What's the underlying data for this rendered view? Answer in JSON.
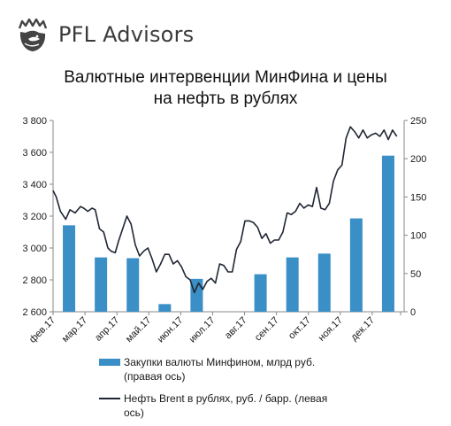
{
  "brand": {
    "name": "PFL Advisors"
  },
  "chart_data": {
    "type": "bar+line",
    "title": [
      "Валютные  интервенции МинФина  и цены",
      "на нефть в рублях"
    ],
    "x_ticks": [
      "фев.17",
      "мар.17",
      "апр.17",
      "май.17",
      "июн.17",
      "июл.17",
      "авг.17",
      "сен.17",
      "окт.17",
      "ноя.17",
      "дек.17"
    ],
    "left_axis": {
      "min": 2600,
      "max": 3800,
      "step": 200,
      "tick_labels": [
        "2 600",
        "2 800",
        "3 000",
        "3 200",
        "3 400",
        "3 600",
        "3 800"
      ]
    },
    "right_axis": {
      "min": 0,
      "max": 250,
      "step": 50,
      "tick_labels": [
        "0",
        "50",
        "100",
        "150",
        "200",
        "250"
      ]
    },
    "series": [
      {
        "name": "Закупки валюты Минфином, млрд руб. (правая ось)",
        "kind": "bar",
        "axis": "right",
        "color": "#3a8fc7",
        "categories": [
          "фев.17",
          "мар.17",
          "апр.17",
          "май.17",
          "июн.17",
          "июл.17",
          "авг.17",
          "сен.17",
          "окт.17",
          "ноя.17",
          "дек.17"
        ],
        "values": [
          113,
          71,
          70,
          10,
          43,
          0,
          49,
          71,
          76,
          122,
          204
        ]
      },
      {
        "name": "Нефть Brent в рублях, руб. / барр. (левая ось)",
        "kind": "line",
        "axis": "left",
        "color": "#1f2633",
        "x": [
          "2017-02-01",
          "2017-02-04",
          "2017-02-08",
          "2017-02-13",
          "2017-02-17",
          "2017-02-22",
          "2017-02-27",
          "2017-03-02",
          "2017-03-06",
          "2017-03-10",
          "2017-03-13",
          "2017-03-17",
          "2017-03-21",
          "2017-03-25",
          "2017-03-28",
          "2017-04-01",
          "2017-04-04",
          "2017-04-08",
          "2017-04-12",
          "2017-04-16",
          "2017-04-20",
          "2017-04-24",
          "2017-04-28",
          "2017-05-02",
          "2017-05-06",
          "2017-05-10",
          "2017-05-14",
          "2017-05-18",
          "2017-05-22",
          "2017-05-26",
          "2017-05-30",
          "2017-06-03",
          "2017-06-07",
          "2017-06-11",
          "2017-06-15",
          "2017-06-19",
          "2017-06-23",
          "2017-06-27",
          "2017-07-01",
          "2017-07-05",
          "2017-07-09",
          "2017-07-13",
          "2017-07-17",
          "2017-07-21",
          "2017-07-25",
          "2017-07-29",
          "2017-08-02",
          "2017-08-06",
          "2017-08-10",
          "2017-08-14",
          "2017-08-18",
          "2017-08-22",
          "2017-08-26",
          "2017-08-30",
          "2017-09-03",
          "2017-09-07",
          "2017-09-11",
          "2017-09-15",
          "2017-09-19",
          "2017-09-23",
          "2017-09-27",
          "2017-10-01",
          "2017-10-05",
          "2017-10-09",
          "2017-10-13",
          "2017-10-17",
          "2017-10-21",
          "2017-10-25",
          "2017-10-29",
          "2017-11-02",
          "2017-11-06",
          "2017-11-10",
          "2017-11-14",
          "2017-11-18",
          "2017-11-22",
          "2017-11-26",
          "2017-11-30",
          "2017-12-04",
          "2017-12-08",
          "2017-12-12",
          "2017-12-16",
          "2017-12-20",
          "2017-12-24"
        ],
        "values": [
          3360,
          3320,
          3230,
          3180,
          3240,
          3220,
          3260,
          3250,
          3230,
          3250,
          3240,
          3120,
          3100,
          3000,
          2980,
          2970,
          3040,
          3120,
          3200,
          3150,
          3020,
          2950,
          2980,
          3000,
          2930,
          2850,
          2900,
          2960,
          2960,
          2900,
          2920,
          2880,
          2820,
          2800,
          2720,
          2780,
          2740,
          2790,
          2810,
          2780,
          2900,
          2890,
          2850,
          2850,
          2990,
          3040,
          3170,
          3170,
          3160,
          3130,
          3060,
          3090,
          3030,
          3050,
          3050,
          3100,
          3220,
          3210,
          3230,
          3280,
          3250,
          3270,
          3260,
          3380,
          3250,
          3240,
          3280,
          3420,
          3490,
          3520,
          3690,
          3760,
          3730,
          3690,
          3740,
          3690,
          3710,
          3720,
          3700,
          3740,
          3680,
          3740,
          3700
        ]
      }
    ],
    "grid": false,
    "legend_position": "bottom"
  }
}
